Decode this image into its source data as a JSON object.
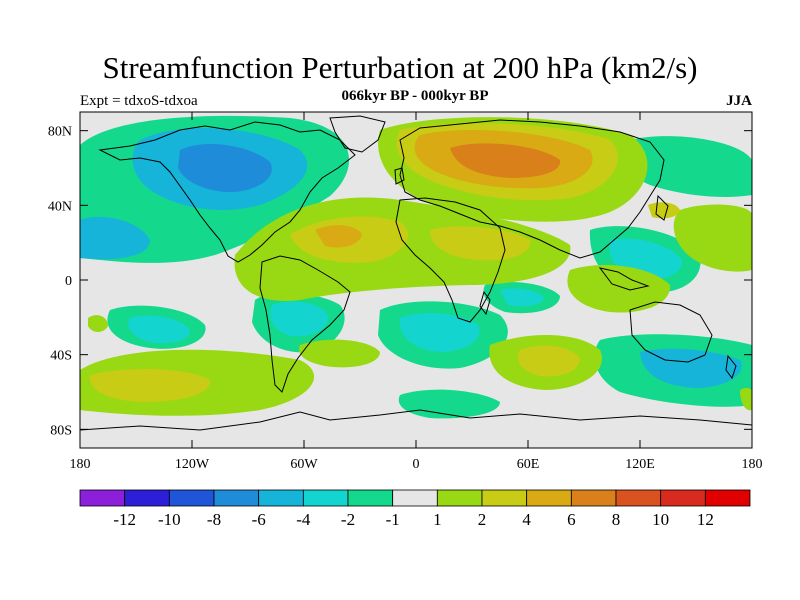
{
  "title": "Streamfunction Perturbation at 200 hPa (km2/s)",
  "subtitle": "066kyr BP - 000kyr BP",
  "experiment": "Expt = tdxoS-tdxoa",
  "season": "JJA",
  "map": {
    "lat_ticks": [
      "80N",
      "40N",
      "0",
      "40S",
      "80S"
    ],
    "lon_ticks": [
      "180",
      "120W",
      "60W",
      "0",
      "60E",
      "120E",
      "180"
    ],
    "ocean_color": "#e6e6e6"
  },
  "colorbar": {
    "labels": [
      "-12",
      "-10",
      "-8",
      "-6",
      "-4",
      "-2",
      "-1",
      "1",
      "2",
      "4",
      "6",
      "8",
      "10",
      "12"
    ],
    "colors": [
      "#8c1fd9",
      "#2d1fd9",
      "#1f55d9",
      "#1f8cd9",
      "#16b4d9",
      "#14d4d0",
      "#14d98c",
      "#e6e6e6",
      "#99d914",
      "#c8cc14",
      "#d9aa14",
      "#d9801a",
      "#d9521f",
      "#d92a1f",
      "#e00000"
    ]
  }
}
